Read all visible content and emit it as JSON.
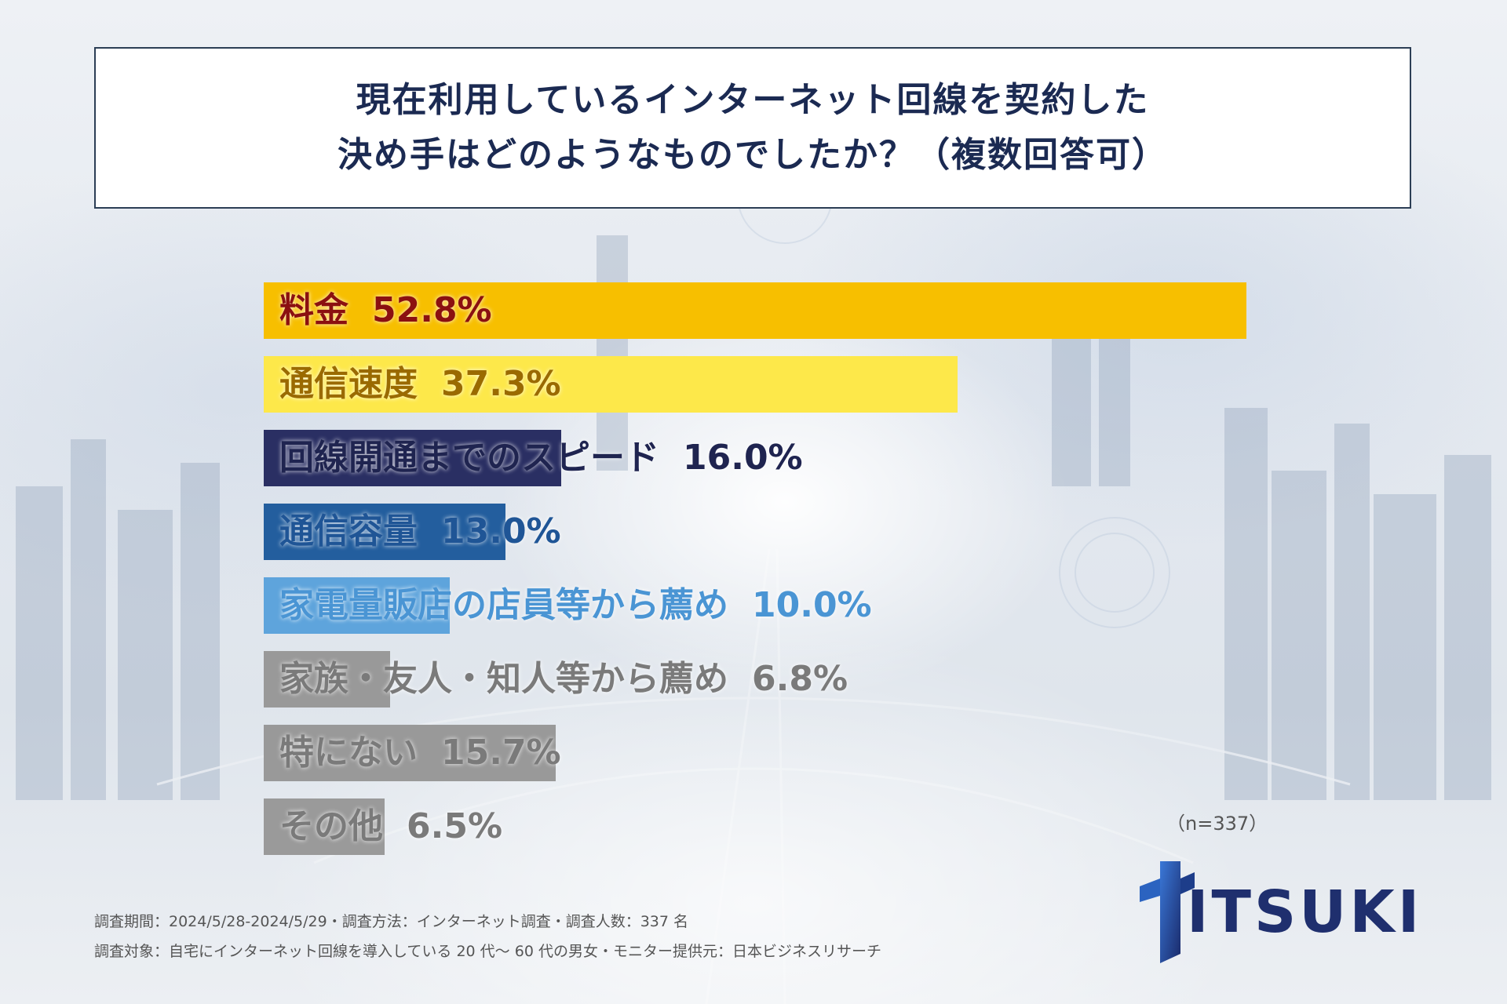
{
  "title": {
    "line1": "現在利用しているインターネット回線を契約した",
    "line2": "決め手はどのようなものでしたか？（複数回答可）"
  },
  "chart_data": {
    "type": "bar",
    "orientation": "horizontal",
    "title": "現在利用しているインターネット回線を契約した決め手はどのようなものでしたか？（複数回答可）",
    "categories": [
      "料金",
      "通信速度",
      "回線開通までのスピード",
      "通信容量",
      "家電量販店の店員等から薦め",
      "家族・友人・知人等から薦め",
      "特にない",
      "その他"
    ],
    "values": [
      52.8,
      37.3,
      16.0,
      13.0,
      10.0,
      6.8,
      15.7,
      6.5
    ],
    "value_labels": [
      "52.8%",
      "37.3%",
      "16.0%",
      "13.0%",
      "10.0%",
      "6.8%",
      "15.7%",
      "6.5%"
    ],
    "bar_colors": [
      "#f7bf00",
      "#fde84a",
      "#2a2f63",
      "#235e9e",
      "#5ea4dc",
      "#999999",
      "#999999",
      "#9a9a9a"
    ],
    "label_colors": [
      "#8b1010",
      "#9a6a00",
      "#1f2450",
      "#1f5596",
      "#4a95d4",
      "#7a7a7a",
      "#7a7a7a",
      "#7a7a7a"
    ],
    "xlim": [
      0,
      52.8
    ],
    "sample_size": "（n=337）"
  },
  "footnotes": {
    "line1": "調査期間：2024/5/28-2024/5/29・調査方法：インターネット調査・調査人数：337 名",
    "line2": "調査対象：自宅にインターネット回線を導入している 20 代～ 60 代の男女・モニター提供元：日本ビジネスリサーチ"
  },
  "logo": {
    "text": "ITSUKI",
    "icon": "itsuki-logo-mark"
  }
}
